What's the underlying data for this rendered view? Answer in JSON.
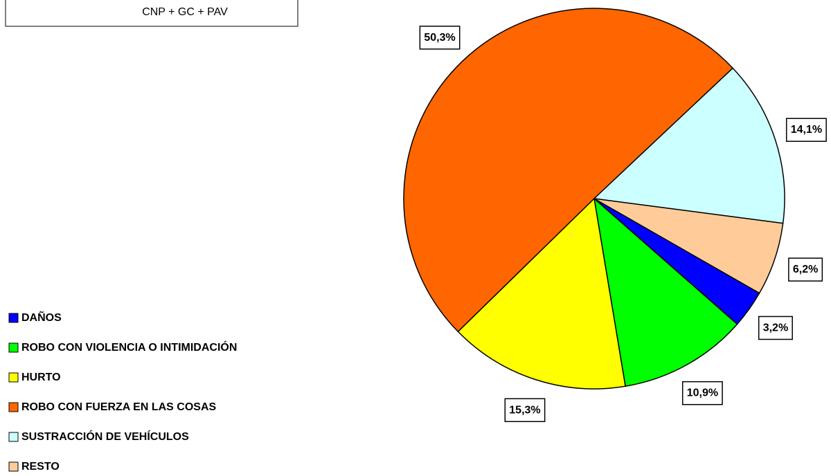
{
  "chart_data": {
    "type": "pie",
    "title": "CNP + GC + PAV",
    "categories": [
      "DAÑOS",
      "ROBO CON VIOLENCIA O INTIMIDACIÓN",
      "HURTO",
      "ROBO CON FUERZA EN LAS COSAS",
      "SUSTRACCIÓN DE VEHÍCULOS",
      "RESTO"
    ],
    "values": [
      3.2,
      10.9,
      15.3,
      50.3,
      14.1,
      6.2
    ],
    "value_labels": [
      "3,2%",
      "10,9%",
      "15,3%",
      "50,3%",
      "14,1%",
      "6,2%"
    ],
    "colors": [
      "#0000ff",
      "#00ff00",
      "#ffff00",
      "#ff6600",
      "#ccffff",
      "#ffcc99"
    ],
    "legend": "left"
  }
}
